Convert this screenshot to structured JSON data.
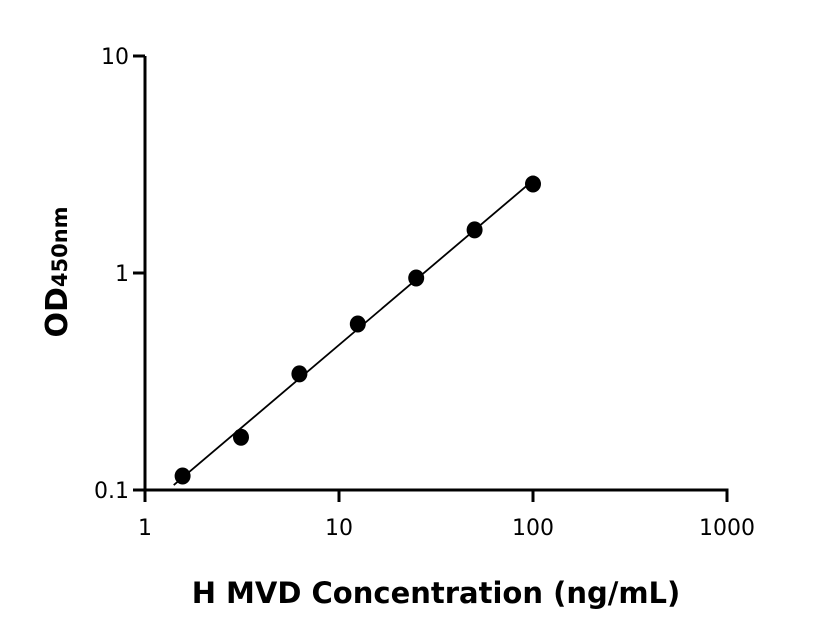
{
  "chart_data": {
    "type": "scatter",
    "title": "",
    "xlabel": "H MVD Concentration (ng/mL)",
    "ylabel": "OD",
    "ylabel_subscript": "450nm",
    "x_scale": "log",
    "y_scale": "log",
    "xlim": [
      1,
      1000
    ],
    "ylim": [
      0.1,
      10
    ],
    "x_ticks": [
      "1",
      "10",
      "100",
      "1000"
    ],
    "y_ticks": [
      "0.1",
      "1",
      "10"
    ],
    "grid": false,
    "fit_line": "linear fit on log-log axes",
    "x": [
      1.5625,
      3.125,
      6.25,
      12.5,
      25,
      50,
      100
    ],
    "y": [
      0.116,
      0.175,
      0.343,
      0.582,
      0.948,
      1.58,
      2.57
    ],
    "colors": {
      "points": "#000000",
      "line": "#000000"
    }
  }
}
